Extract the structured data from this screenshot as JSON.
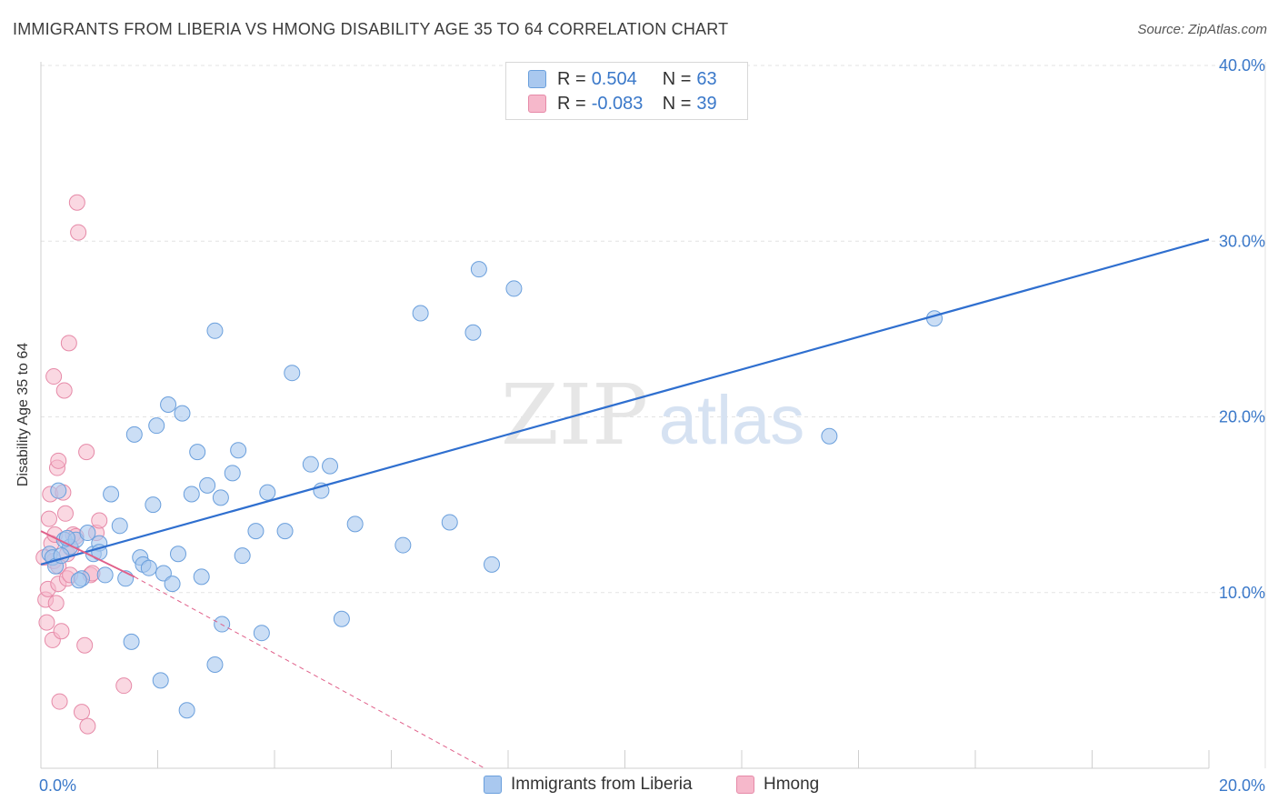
{
  "title": "IMMIGRANTS FROM LIBERIA VS HMONG DISABILITY AGE 35 TO 64 CORRELATION CHART",
  "source": "Source: ZipAtlas.com",
  "watermark": {
    "zip": "ZIP",
    "atlas": "atlas"
  },
  "colors": {
    "liberia_fill": "#a9c8ef",
    "liberia_stroke": "#6a9fdc",
    "liberia_line": "#2f6fcf",
    "hmong_fill": "#f6b8cb",
    "hmong_stroke": "#e68aa8",
    "hmong_line": "#e0608a",
    "axis_text": "#3a78c9",
    "grid": "#e3e3e3"
  },
  "legend_top": {
    "rows": [
      {
        "r_label": "R =",
        "r_value": "0.504",
        "n_label": "N =",
        "n_value": "63",
        "color": "#a9c8ef",
        "border": "#6a9fdc"
      },
      {
        "r_label": "R =",
        "r_value": "-0.083",
        "n_label": "N =",
        "n_value": "39",
        "color": "#f6b8cb",
        "border": "#e68aa8"
      }
    ]
  },
  "legend_bottom": [
    {
      "label": "Immigrants from Liberia",
      "color": "#a9c8ef",
      "border": "#6a9fdc"
    },
    {
      "label": "Hmong",
      "color": "#f6b8cb",
      "border": "#e68aa8"
    }
  ],
  "chart_data": {
    "type": "scatter",
    "title": "IMMIGRANTS FROM LIBERIA VS HMONG DISABILITY AGE 35 TO 64 CORRELATION CHART",
    "xlabel": "",
    "ylabel": "Disability Age 35 to 64",
    "xlim": [
      0,
      20
    ],
    "ylim": [
      0,
      40
    ],
    "x_tick_labels": [
      "0.0%",
      "20.0%"
    ],
    "y_ticks": [
      10,
      20,
      30,
      40
    ],
    "y_tick_labels": [
      "10.0%",
      "20.0%",
      "30.0%",
      "40.0%"
    ],
    "grid": true,
    "series": [
      {
        "name": "Immigrants from Liberia",
        "points": [
          [
            0.15,
            12.2
          ],
          [
            0.2,
            12.0
          ],
          [
            0.25,
            11.5
          ],
          [
            0.3,
            15.8
          ],
          [
            0.4,
            13.0
          ],
          [
            0.5,
            12.6
          ],
          [
            0.6,
            13.0
          ],
          [
            0.7,
            10.8
          ],
          [
            0.8,
            13.4
          ],
          [
            0.9,
            12.2
          ],
          [
            1.0,
            12.8
          ],
          [
            1.0,
            12.3
          ],
          [
            1.1,
            11.0
          ],
          [
            1.2,
            15.6
          ],
          [
            1.35,
            13.8
          ],
          [
            1.45,
            10.8
          ],
          [
            1.55,
            7.2
          ],
          [
            1.6,
            19.0
          ],
          [
            1.7,
            12.0
          ],
          [
            1.75,
            11.6
          ],
          [
            1.85,
            11.4
          ],
          [
            1.92,
            15.0
          ],
          [
            1.98,
            19.5
          ],
          [
            2.05,
            5.0
          ],
          [
            2.1,
            11.1
          ],
          [
            2.18,
            20.7
          ],
          [
            2.25,
            10.5
          ],
          [
            2.35,
            12.2
          ],
          [
            2.42,
            20.2
          ],
          [
            2.5,
            3.3
          ],
          [
            2.58,
            15.6
          ],
          [
            2.68,
            18.0
          ],
          [
            2.75,
            10.9
          ],
          [
            2.85,
            16.1
          ],
          [
            2.98,
            5.9
          ],
          [
            2.98,
            24.9
          ],
          [
            3.08,
            15.4
          ],
          [
            3.1,
            8.2
          ],
          [
            3.28,
            16.8
          ],
          [
            3.38,
            18.1
          ],
          [
            3.45,
            12.1
          ],
          [
            3.68,
            13.5
          ],
          [
            3.78,
            7.7
          ],
          [
            3.88,
            15.7
          ],
          [
            4.18,
            13.5
          ],
          [
            4.3,
            22.5
          ],
          [
            4.62,
            17.3
          ],
          [
            4.8,
            15.8
          ],
          [
            4.95,
            17.2
          ],
          [
            5.15,
            8.5
          ],
          [
            5.38,
            13.9
          ],
          [
            6.2,
            12.7
          ],
          [
            6.5,
            25.9
          ],
          [
            7.0,
            14.0
          ],
          [
            7.4,
            24.8
          ],
          [
            7.5,
            28.4
          ],
          [
            7.72,
            11.6
          ],
          [
            8.1,
            27.3
          ],
          [
            13.5,
            18.9
          ],
          [
            15.3,
            25.6
          ],
          [
            0.35,
            12.1
          ],
          [
            0.45,
            13.1
          ],
          [
            0.65,
            10.7
          ]
        ],
        "trend": {
          "x": [
            0,
            20
          ],
          "y": [
            11.6,
            30.1
          ]
        }
      },
      {
        "name": "Hmong",
        "points": [
          [
            0.05,
            12.0
          ],
          [
            0.08,
            9.6
          ],
          [
            0.1,
            8.3
          ],
          [
            0.12,
            10.2
          ],
          [
            0.14,
            14.2
          ],
          [
            0.16,
            15.6
          ],
          [
            0.18,
            12.8
          ],
          [
            0.2,
            7.3
          ],
          [
            0.22,
            11.8
          ],
          [
            0.24,
            13.3
          ],
          [
            0.26,
            9.4
          ],
          [
            0.28,
            17.1
          ],
          [
            0.3,
            10.5
          ],
          [
            0.3,
            11.5
          ],
          [
            0.32,
            3.8
          ],
          [
            0.35,
            7.8
          ],
          [
            0.38,
            15.7
          ],
          [
            0.4,
            21.5
          ],
          [
            0.42,
            14.5
          ],
          [
            0.45,
            12.2
          ],
          [
            0.45,
            10.8
          ],
          [
            0.48,
            24.2
          ],
          [
            0.5,
            11.0
          ],
          [
            0.52,
            12.5
          ],
          [
            0.55,
            13.3
          ],
          [
            0.6,
            13.2
          ],
          [
            0.62,
            32.2
          ],
          [
            0.64,
            30.5
          ],
          [
            0.7,
            3.2
          ],
          [
            0.75,
            7.0
          ],
          [
            0.8,
            2.4
          ],
          [
            0.78,
            18.0
          ],
          [
            0.85,
            11.0
          ],
          [
            0.88,
            11.1
          ],
          [
            0.95,
            13.4
          ],
          [
            1.0,
            14.1
          ],
          [
            1.42,
            4.7
          ],
          [
            0.22,
            22.3
          ],
          [
            0.3,
            17.5
          ]
        ],
        "trend_solid": {
          "x": [
            0,
            1.6
          ],
          "y": [
            13.5,
            10.9
          ]
        },
        "trend_dashed": {
          "x": [
            1.6,
            7.6
          ],
          "y": [
            10.9,
            0.0
          ]
        }
      }
    ]
  }
}
